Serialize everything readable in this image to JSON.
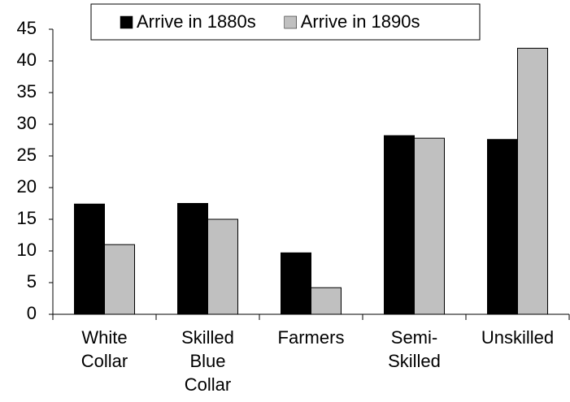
{
  "chart_data": {
    "type": "bar",
    "categories": [
      "White Collar",
      "Skilled Blue Collar",
      "Farmers",
      "Semi-Skilled",
      "Unskilled"
    ],
    "series": [
      {
        "name": "Arrive in 1880s",
        "color": "#000000",
        "values": [
          17.4,
          17.5,
          9.7,
          28.2,
          27.6
        ]
      },
      {
        "name": "Arrive in 1890s",
        "color": "#c0c0c0",
        "values": [
          11,
          15,
          4.2,
          27.8,
          42
        ]
      }
    ],
    "ylim": [
      0,
      45
    ],
    "yticks": [
      0,
      5,
      10,
      15,
      20,
      25,
      30,
      35,
      40,
      45
    ],
    "grid": false,
    "legend": "top"
  }
}
